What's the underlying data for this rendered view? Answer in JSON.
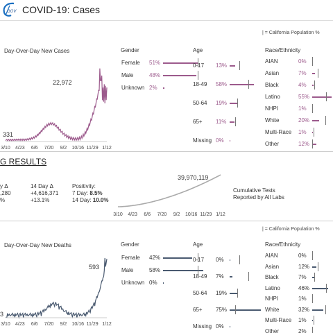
{
  "header": {
    "logo_text": "GOV",
    "title": "COVID-19: Cases"
  },
  "cases": {
    "legend": "| = California Population %",
    "chart_label": "Day-Over-Day New Cases",
    "peak_label": "22,972",
    "start_label": "331",
    "x_ticks": [
      "3/10",
      "4/23",
      "6/6",
      "7/20",
      "9/2",
      "10/16",
      "11/29",
      "1/12"
    ],
    "gender": {
      "heading": "Gender",
      "rows": [
        {
          "label": "Female",
          "pct": "51%",
          "value": 51
        },
        {
          "label": "Male",
          "pct": "48%",
          "value": 48
        },
        {
          "label": "Unknown",
          "pct": "2%",
          "value": 2
        }
      ]
    },
    "age": {
      "heading": "Age",
      "rows": [
        {
          "label": "0-17",
          "pct": "13%",
          "value": 13
        },
        {
          "label": "18-49",
          "pct": "58%",
          "value": 58
        },
        {
          "label": "50-64",
          "pct": "19%",
          "value": 19
        },
        {
          "label": "65+",
          "pct": "11%",
          "value": 11
        },
        {
          "label": "Missing",
          "pct": "0%",
          "value": 0
        }
      ]
    },
    "race": {
      "heading": "Race/Ethnicity",
      "rows": [
        {
          "label": "AIAN",
          "pct": "0%",
          "value": 0
        },
        {
          "label": "Asian",
          "pct": "7%",
          "value": 7
        },
        {
          "label": "Black",
          "pct": "4%",
          "value": 4
        },
        {
          "label": "Latino",
          "pct": "55%",
          "value": 55
        },
        {
          "label": "NHPI",
          "pct": "1%",
          "value": 1
        },
        {
          "label": "White",
          "pct": "20%",
          "value": 20
        },
        {
          "label": "Multi-Race",
          "pct": "1%",
          "value": 1
        },
        {
          "label": "Other",
          "pct": "12%",
          "value": 12
        }
      ]
    }
  },
  "testing": {
    "section_title": "G RESULTS",
    "col1_line1": "y Δ",
    "col1_line2": ",280",
    "col1_line3": "%",
    "col2_line1": "14 Day Δ",
    "col2_line2": "+4,616,371",
    "col2_line3": "+13.1%",
    "col3_line1": "Positivity:",
    "col3_line2a": "7 Day: ",
    "col3_line2b": "8.5%",
    "col3_line3a": "14 Day: ",
    "col3_line3b": "10.0%",
    "total_label": "39,970,119",
    "caption_line1": "Cumulative Tests",
    "caption_line2": "Reported by All Labs",
    "x_ticks": [
      "3/10",
      "4/23",
      "6/6",
      "7/20",
      "9/2",
      "10/16",
      "11/29",
      "1/12"
    ]
  },
  "deaths": {
    "legend": "| = California Population %",
    "chart_label": "Day-Over-Day New Deaths",
    "peak_label": "593",
    "start_label": "3",
    "x_ticks": [
      "3/10",
      "4/23",
      "6/6",
      "7/20",
      "9/2",
      "10/16",
      "11/29",
      "1/12"
    ],
    "gender": {
      "heading": "Gender",
      "rows": [
        {
          "label": "Female",
          "pct": "42%",
          "value": 42
        },
        {
          "label": "Male",
          "pct": "58%",
          "value": 58
        },
        {
          "label": "Unknown",
          "pct": "0%",
          "value": 0
        }
      ]
    },
    "age": {
      "heading": "Age",
      "rows": [
        {
          "label": "0-17",
          "pct": "0%",
          "value": 0
        },
        {
          "label": "18-49",
          "pct": "7%",
          "value": 7
        },
        {
          "label": "50-64",
          "pct": "19%",
          "value": 19
        },
        {
          "label": "65+",
          "pct": "75%",
          "value": 75
        },
        {
          "label": "Missing",
          "pct": "0%",
          "value": 0
        }
      ]
    },
    "race": {
      "heading": "Race/Ethnicity",
      "rows": [
        {
          "label": "AIAN",
          "pct": "0%",
          "value": 0
        },
        {
          "label": "Asian",
          "pct": "12%",
          "value": 12
        },
        {
          "label": "Black",
          "pct": "7%",
          "value": 7
        },
        {
          "label": "Latino",
          "pct": "46%",
          "value": 46
        },
        {
          "label": "NHPI",
          "pct": "1%",
          "value": 1
        },
        {
          "label": "White",
          "pct": "32%",
          "value": 32
        },
        {
          "label": "Multi-Race",
          "pct": "1%",
          "value": 1
        },
        {
          "label": "Other",
          "pct": "2%",
          "value": 2
        }
      ]
    }
  },
  "colors": {
    "cases": "#9c5a8c",
    "deaths": "#4a5a70",
    "tests": "#aaaaaa"
  }
}
